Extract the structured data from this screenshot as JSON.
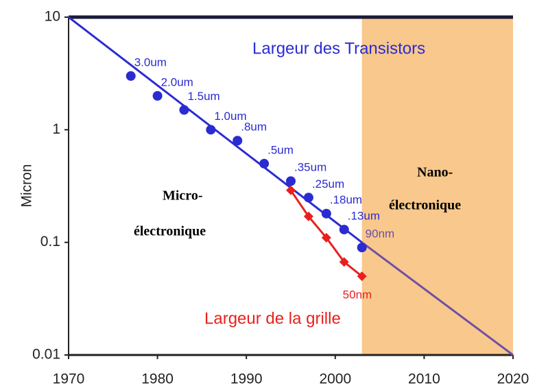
{
  "chart_data": {
    "type": "line",
    "ylabel": "Micron",
    "log_y": true,
    "xlim": [
      1970,
      2020
    ],
    "ylim": [
      0.01,
      10
    ],
    "xticks": [
      1970,
      1980,
      1990,
      2000,
      2010,
      2020
    ],
    "yticks": [
      0.01,
      0.1,
      1,
      10
    ],
    "shaded_region": {
      "x": [
        2003,
        2020
      ],
      "color": "#f9c88c"
    },
    "trend": {
      "x": [
        1970,
        2003,
        2020
      ],
      "values": [
        10,
        0.1,
        0.01
      ],
      "colors": [
        "#2b2bd2",
        "#6e4fa6"
      ]
    },
    "series": [
      {
        "name": "Largeur des Transistors",
        "color": "#2b2bd2",
        "marker": "circle",
        "x": [
          1977,
          1980,
          1983,
          1986,
          1989,
          1992,
          1995,
          1997,
          1999,
          2001,
          2003
        ],
        "values": [
          3.0,
          2.0,
          1.5,
          1.0,
          0.8,
          0.5,
          0.35,
          0.25,
          0.18,
          0.13,
          0.09
        ],
        "value_labels": [
          "3.0um",
          "2.0um",
          "1.5um",
          "1.0um",
          ".8um",
          ".5um",
          ".35um",
          ".25um",
          ".18um",
          ".13um",
          "90nm"
        ]
      },
      {
        "name": "Largeur de la grille",
        "color": "#e8201c",
        "marker": "diamond",
        "x": [
          1995,
          1997,
          1999,
          2001,
          2003
        ],
        "values": [
          0.29,
          0.17,
          0.11,
          0.067,
          0.05
        ],
        "value_labels": [
          null,
          null,
          null,
          null,
          "50nm"
        ]
      }
    ],
    "annotations": [
      "Micro-",
      "électronique",
      "Nano-",
      "électronique"
    ]
  }
}
